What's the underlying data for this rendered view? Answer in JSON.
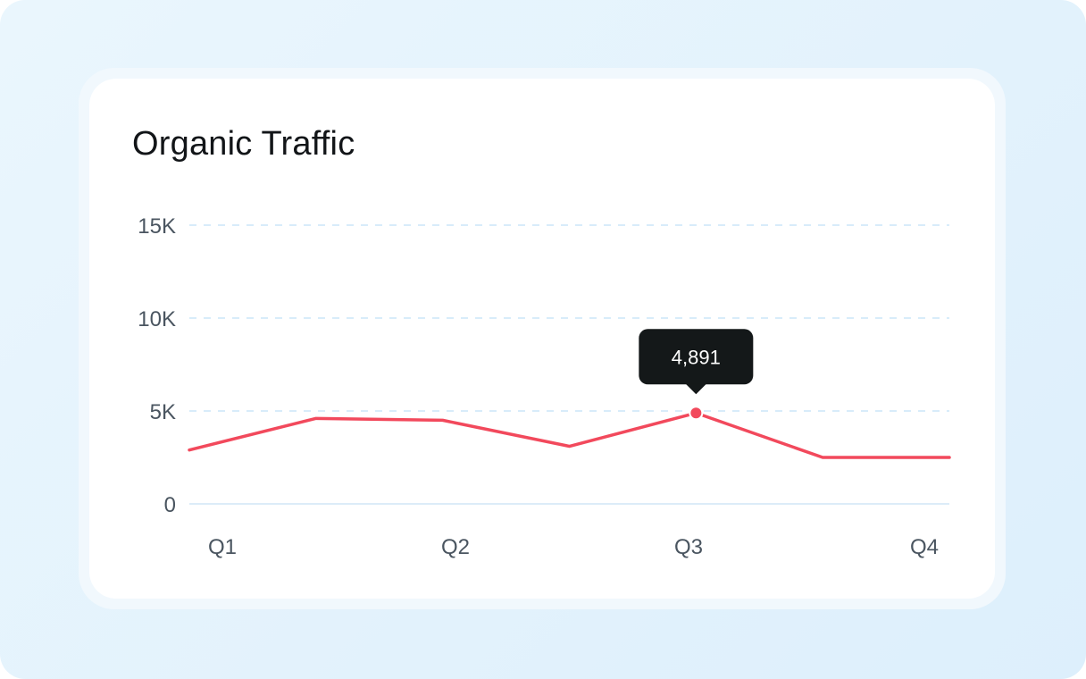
{
  "card": {
    "title": "Organic Traffic"
  },
  "colors": {
    "line": "#f2495c",
    "grid": "#d8ecfa",
    "axis": "#dcecf8",
    "tooltip_bg": "#141819"
  },
  "chart_data": {
    "type": "line",
    "title": "Organic Traffic",
    "xlabel": "",
    "ylabel": "",
    "x_ticks": [
      "Q1",
      "Q2",
      "Q3",
      "Q4"
    ],
    "y_ticks": [
      "0",
      "5K",
      "10K",
      "15K"
    ],
    "y_tick_values": [
      0,
      5000,
      10000,
      15000
    ],
    "ylim": [
      0,
      15000
    ],
    "xlim": [
      0,
      6
    ],
    "grid": true,
    "series": [
      {
        "x": [
          0,
          1,
          2,
          3,
          4,
          5,
          6
        ],
        "values": [
          2900,
          4600,
          4500,
          3100,
          4891,
          2500,
          2500
        ]
      }
    ],
    "highlight": {
      "index": 4,
      "label": "4,891"
    }
  }
}
